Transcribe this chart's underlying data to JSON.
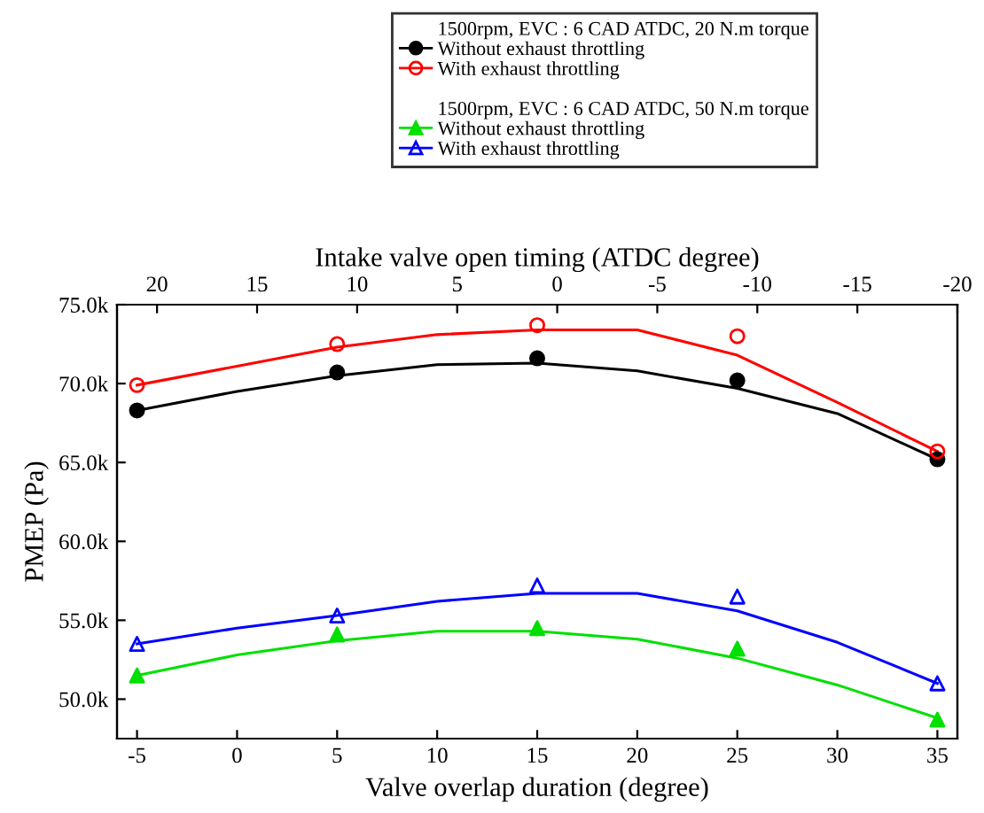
{
  "chart_data": {
    "type": "scatter",
    "xlabel": "Valve overlap duration (degree)",
    "ylabel": "PMEP (Pa)",
    "x2label": "Intake valve open timing (ATDC degree)",
    "xlim": [
      -6,
      36
    ],
    "xticks": [
      -5,
      0,
      5,
      10,
      15,
      20,
      25,
      30,
      35
    ],
    "x2lim": [
      22,
      -20
    ],
    "x2ticks": [
      20,
      15,
      10,
      5,
      0,
      -5,
      -10,
      -15,
      -20
    ],
    "ylim": [
      47500,
      75000
    ],
    "yticks": [
      {
        "value": 50000,
        "label": "50.0k"
      },
      {
        "value": 55000,
        "label": "55.0k"
      },
      {
        "value": 60000,
        "label": "60.0k"
      },
      {
        "value": 65000,
        "label": "65.0k"
      },
      {
        "value": 70000,
        "label": "70.0k"
      },
      {
        "value": 75000,
        "label": "75.0k"
      }
    ],
    "grid": false,
    "legend": "top",
    "annotations": [
      "1500rpm, EVC : 6 CAD ATDC, 20 N.m torque",
      "1500rpm, EVC : 6 CAD ATDC, 50 N.m torque"
    ],
    "series": [
      {
        "name": "Without exhaust throttling",
        "marker": "circle",
        "color": "#000000",
        "x": [
          -5,
          5,
          15,
          25,
          35
        ],
        "values": [
          68300,
          70700,
          71600,
          70200,
          65200
        ]
      },
      {
        "name": "With exhaust throttling",
        "marker": "circle_open",
        "color": "#ff0000",
        "x": [
          -5,
          5,
          15,
          25,
          35
        ],
        "values": [
          69900,
          72500,
          73700,
          73000,
          65700
        ]
      },
      {
        "name": "Without exhaust throttling",
        "marker": "triangle",
        "color": "#00e000",
        "x": [
          -5,
          5,
          15,
          25,
          35
        ],
        "values": [
          51500,
          54100,
          54500,
          53200,
          48700
        ]
      },
      {
        "name": "With exhaust throttling",
        "marker": "triangle_open",
        "color": "#0000ff",
        "x": [
          -5,
          5,
          15,
          25,
          35
        ],
        "values": [
          53500,
          55300,
          57200,
          56500,
          51000
        ]
      },
      {
        "type": "line",
        "color": "#000000",
        "x": [
          -5,
          0,
          5,
          10,
          15,
          20,
          25,
          30,
          35
        ],
        "values": [
          68300,
          69500,
          70500,
          71200,
          71300,
          70800,
          69700,
          68100,
          65200
        ]
      },
      {
        "type": "line",
        "color": "#ff0000",
        "x": [
          -5,
          0,
          5,
          10,
          15,
          20,
          25,
          30,
          35
        ],
        "values": [
          69900,
          71100,
          72300,
          73100,
          73400,
          73400,
          71800,
          68800,
          65700
        ]
      },
      {
        "type": "line",
        "color": "#00e000",
        "x": [
          -5,
          0,
          5,
          10,
          15,
          20,
          25,
          30,
          35
        ],
        "values": [
          51500,
          52800,
          53700,
          54300,
          54300,
          53800,
          52600,
          50900,
          48800
        ]
      },
      {
        "type": "line",
        "color": "#0000ff",
        "x": [
          -5,
          0,
          5,
          10,
          15,
          20,
          25,
          30,
          35
        ],
        "values": [
          53500,
          54500,
          55300,
          56200,
          56700,
          56700,
          55600,
          53600,
          51000
        ]
      }
    ]
  }
}
